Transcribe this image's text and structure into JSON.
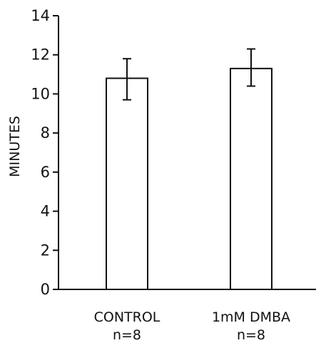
{
  "chart_data": {
    "type": "bar",
    "title": "",
    "xlabel": "",
    "ylabel": "MINUTES",
    "ylim": [
      0,
      14
    ],
    "yticks": [
      0,
      2,
      4,
      6,
      8,
      10,
      12,
      14
    ],
    "grid": false,
    "categories": [
      "CONTROL",
      "1mM DMBA"
    ],
    "sample_sizes": [
      "n=8",
      "n=8"
    ],
    "series": [
      {
        "values": [
          10.8,
          11.3
        ],
        "error_low": [
          9.7,
          10.4
        ],
        "error_high": [
          11.8,
          12.3
        ]
      }
    ],
    "colors": {
      "bar_fill": "#ffffff",
      "stroke": "#111111"
    }
  }
}
